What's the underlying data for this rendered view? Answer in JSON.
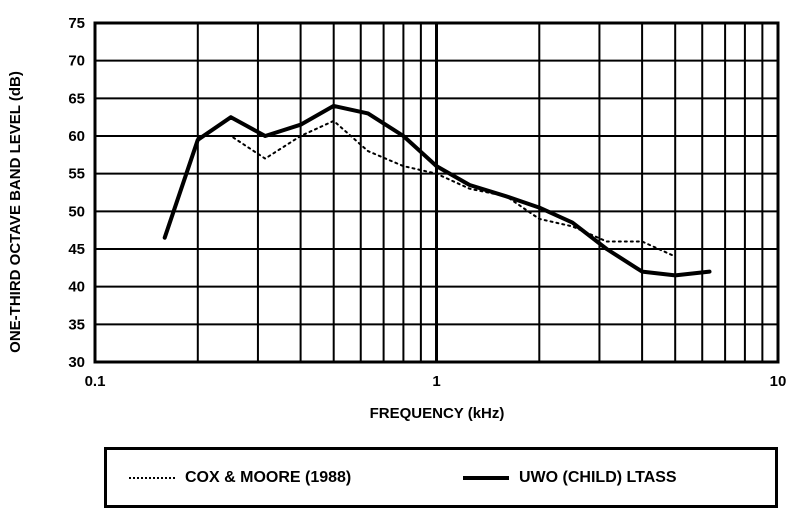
{
  "chart_data": {
    "type": "line",
    "xscale": "log",
    "xlim": [
      0.1,
      10
    ],
    "ylim": [
      30,
      75
    ],
    "xlabel": "FREQUENCY (kHz)",
    "ylabel": "ONE-THIRD OCTAVE BAND LEVEL (dB)",
    "x_tick_labels": [
      "0.1",
      "1",
      "10"
    ],
    "x_tick_values": [
      0.1,
      1,
      10
    ],
    "y_ticks": [
      30,
      35,
      40,
      45,
      50,
      55,
      60,
      65,
      70,
      75
    ],
    "y_tick_labels": [
      "30",
      "35",
      "40",
      "45",
      "50",
      "55",
      "60",
      "65",
      "70",
      "75"
    ],
    "grid": true,
    "legend_position": "bottom",
    "series": [
      {
        "name": "COX & MOORE (1988)",
        "style": "dotted",
        "x": [
          0.2,
          0.25,
          0.315,
          0.4,
          0.5,
          0.63,
          0.8,
          1.0,
          1.25,
          1.6,
          2.0,
          2.5,
          3.15,
          4.0,
          5.0
        ],
        "y": [
          60,
          60,
          57,
          60,
          62,
          58,
          56,
          55,
          53,
          52,
          49,
          48,
          46,
          46,
          44
        ]
      },
      {
        "name": "UWO (CHILD) LTASS",
        "style": "solid",
        "x": [
          0.16,
          0.2,
          0.25,
          0.315,
          0.4,
          0.5,
          0.63,
          0.8,
          1.0,
          1.25,
          1.6,
          2.0,
          2.5,
          3.15,
          4.0,
          5.0,
          6.3
        ],
        "y": [
          46.5,
          59.5,
          62.5,
          60,
          61.5,
          64,
          63,
          60,
          56,
          53.5,
          52,
          50.5,
          48.5,
          45,
          42,
          41.5,
          42
        ]
      }
    ]
  },
  "legend": {
    "items": [
      {
        "label": "COX & MOORE (1988)",
        "style": "dotted"
      },
      {
        "label": "UWO (CHILD) LTASS",
        "style": "solid"
      }
    ]
  }
}
